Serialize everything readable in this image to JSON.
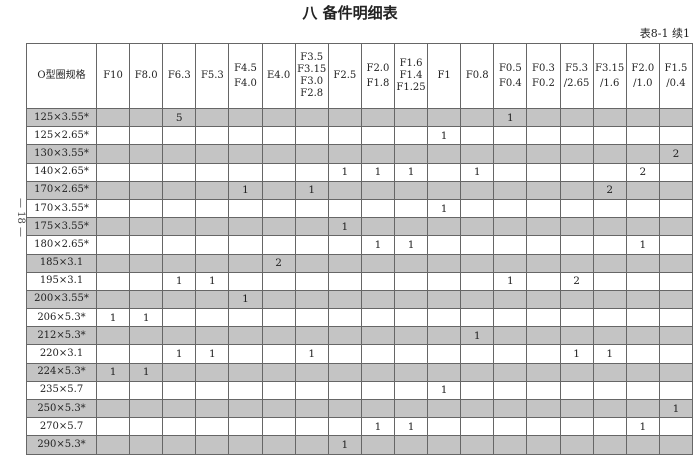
{
  "title": "八 备件明细表",
  "table_number": "表8-1 续1",
  "page_number": "— 18 —",
  "colors": {
    "shaded_row": "#c4c4c4"
  },
  "table": {
    "first_header": "O型圈规格",
    "headers": [
      [
        "F10"
      ],
      [
        "F8.0"
      ],
      [
        "F6.3"
      ],
      [
        "F5.3"
      ],
      [
        "F4.5",
        "F4.0"
      ],
      [
        "E4.0"
      ],
      [
        "F3.5",
        "F3.15",
        "F3.0",
        "F2.8"
      ],
      [
        "F2.5"
      ],
      [
        "F2.0",
        "F1.8"
      ],
      [
        "F1.6",
        "F1.4",
        "F1.25"
      ],
      [
        "F1"
      ],
      [
        "F0.8"
      ],
      [
        "F0.5",
        "F0.4"
      ],
      [
        "F0.3",
        "F0.2"
      ],
      [
        "F5.3",
        "/2.65"
      ],
      [
        "F3.15",
        "/1.6"
      ],
      [
        "F2.0",
        "/1.0"
      ],
      [
        "F1.5",
        "/0.4"
      ]
    ],
    "rows": [
      {
        "spec": "125×3.55*",
        "values": [
          "",
          "",
          "5",
          "",
          "",
          "",
          "",
          "",
          "",
          "",
          "",
          "",
          "1",
          "",
          "",
          "",
          "",
          ""
        ]
      },
      {
        "spec": "125×2.65*",
        "values": [
          "",
          "",
          "",
          "",
          "",
          "",
          "",
          "",
          "",
          "",
          "1",
          "",
          "",
          "",
          "",
          "",
          "",
          ""
        ]
      },
      {
        "spec": "130×3.55*",
        "values": [
          "",
          "",
          "",
          "",
          "",
          "",
          "",
          "",
          "",
          "",
          "",
          "",
          "",
          "",
          "",
          "",
          "",
          "2"
        ]
      },
      {
        "spec": "140×2.65*",
        "values": [
          "",
          "",
          "",
          "",
          "",
          "",
          "",
          "1",
          "1",
          "1",
          "",
          "1",
          "",
          "",
          "",
          "",
          "2",
          ""
        ]
      },
      {
        "spec": "170×2.65*",
        "values": [
          "",
          "",
          "",
          "",
          "1",
          "",
          "1",
          "",
          "",
          "",
          "",
          "",
          "",
          "",
          "",
          "2",
          "",
          ""
        ]
      },
      {
        "spec": "170×3.55*",
        "values": [
          "",
          "",
          "",
          "",
          "",
          "",
          "",
          "",
          "",
          "",
          "1",
          "",
          "",
          "",
          "",
          "",
          "",
          ""
        ]
      },
      {
        "spec": "175×3.55*",
        "values": [
          "",
          "",
          "",
          "",
          "",
          "",
          "",
          "1",
          "",
          "",
          "",
          "",
          "",
          "",
          "",
          "",
          "",
          ""
        ]
      },
      {
        "spec": "180×2.65*",
        "values": [
          "",
          "",
          "",
          "",
          "",
          "",
          "",
          "",
          "1",
          "1",
          "",
          "",
          "",
          "",
          "",
          "",
          "1",
          ""
        ]
      },
      {
        "spec": "185×3.1",
        "values": [
          "",
          "",
          "",
          "",
          "",
          "2",
          "",
          "",
          "",
          "",
          "",
          "",
          "",
          "",
          "",
          "",
          "",
          ""
        ]
      },
      {
        "spec": "195×3.1",
        "values": [
          "",
          "",
          "1",
          "1",
          "",
          "",
          "",
          "",
          "",
          "",
          "",
          "",
          "1",
          "",
          "2",
          "",
          "",
          ""
        ]
      },
      {
        "spec": "200×3.55*",
        "values": [
          "",
          "",
          "",
          "",
          "1",
          "",
          "",
          "",
          "",
          "",
          "",
          "",
          "",
          "",
          "",
          "",
          "",
          ""
        ]
      },
      {
        "spec": "206×5.3*",
        "values": [
          "1",
          "1",
          "",
          "",
          "",
          "",
          "",
          "",
          "",
          "",
          "",
          "",
          "",
          "",
          "",
          "",
          "",
          ""
        ]
      },
      {
        "spec": "212×5.3*",
        "values": [
          "",
          "",
          "",
          "",
          "",
          "",
          "",
          "",
          "",
          "",
          "",
          "1",
          "",
          "",
          "",
          "",
          "",
          ""
        ]
      },
      {
        "spec": "220×3.1",
        "values": [
          "",
          "",
          "1",
          "1",
          "",
          "",
          "1",
          "",
          "",
          "",
          "",
          "",
          "",
          "",
          "1",
          "1",
          "",
          ""
        ]
      },
      {
        "spec": "224×5.3*",
        "values": [
          "1",
          "1",
          "",
          "",
          "",
          "",
          "",
          "",
          "",
          "",
          "",
          "",
          "",
          "",
          "",
          "",
          "",
          ""
        ]
      },
      {
        "spec": "235×5.7",
        "values": [
          "",
          "",
          "",
          "",
          "",
          "",
          "",
          "",
          "",
          "",
          "1",
          "",
          "",
          "",
          "",
          "",
          "",
          ""
        ]
      },
      {
        "spec": "250×5.3*",
        "values": [
          "",
          "",
          "",
          "",
          "",
          "",
          "",
          "",
          "",
          "",
          "",
          "",
          "",
          "",
          "",
          "",
          "",
          "1"
        ]
      },
      {
        "spec": "270×5.7",
        "values": [
          "",
          "",
          "",
          "",
          "",
          "",
          "",
          "",
          "1",
          "1",
          "",
          "",
          "",
          "",
          "",
          "",
          "1",
          ""
        ]
      },
      {
        "spec": "290×5.3*",
        "values": [
          "",
          "",
          "",
          "",
          "",
          "",
          "",
          "1",
          "",
          "",
          "",
          "",
          "",
          "",
          "",
          "",
          "",
          ""
        ]
      }
    ]
  }
}
